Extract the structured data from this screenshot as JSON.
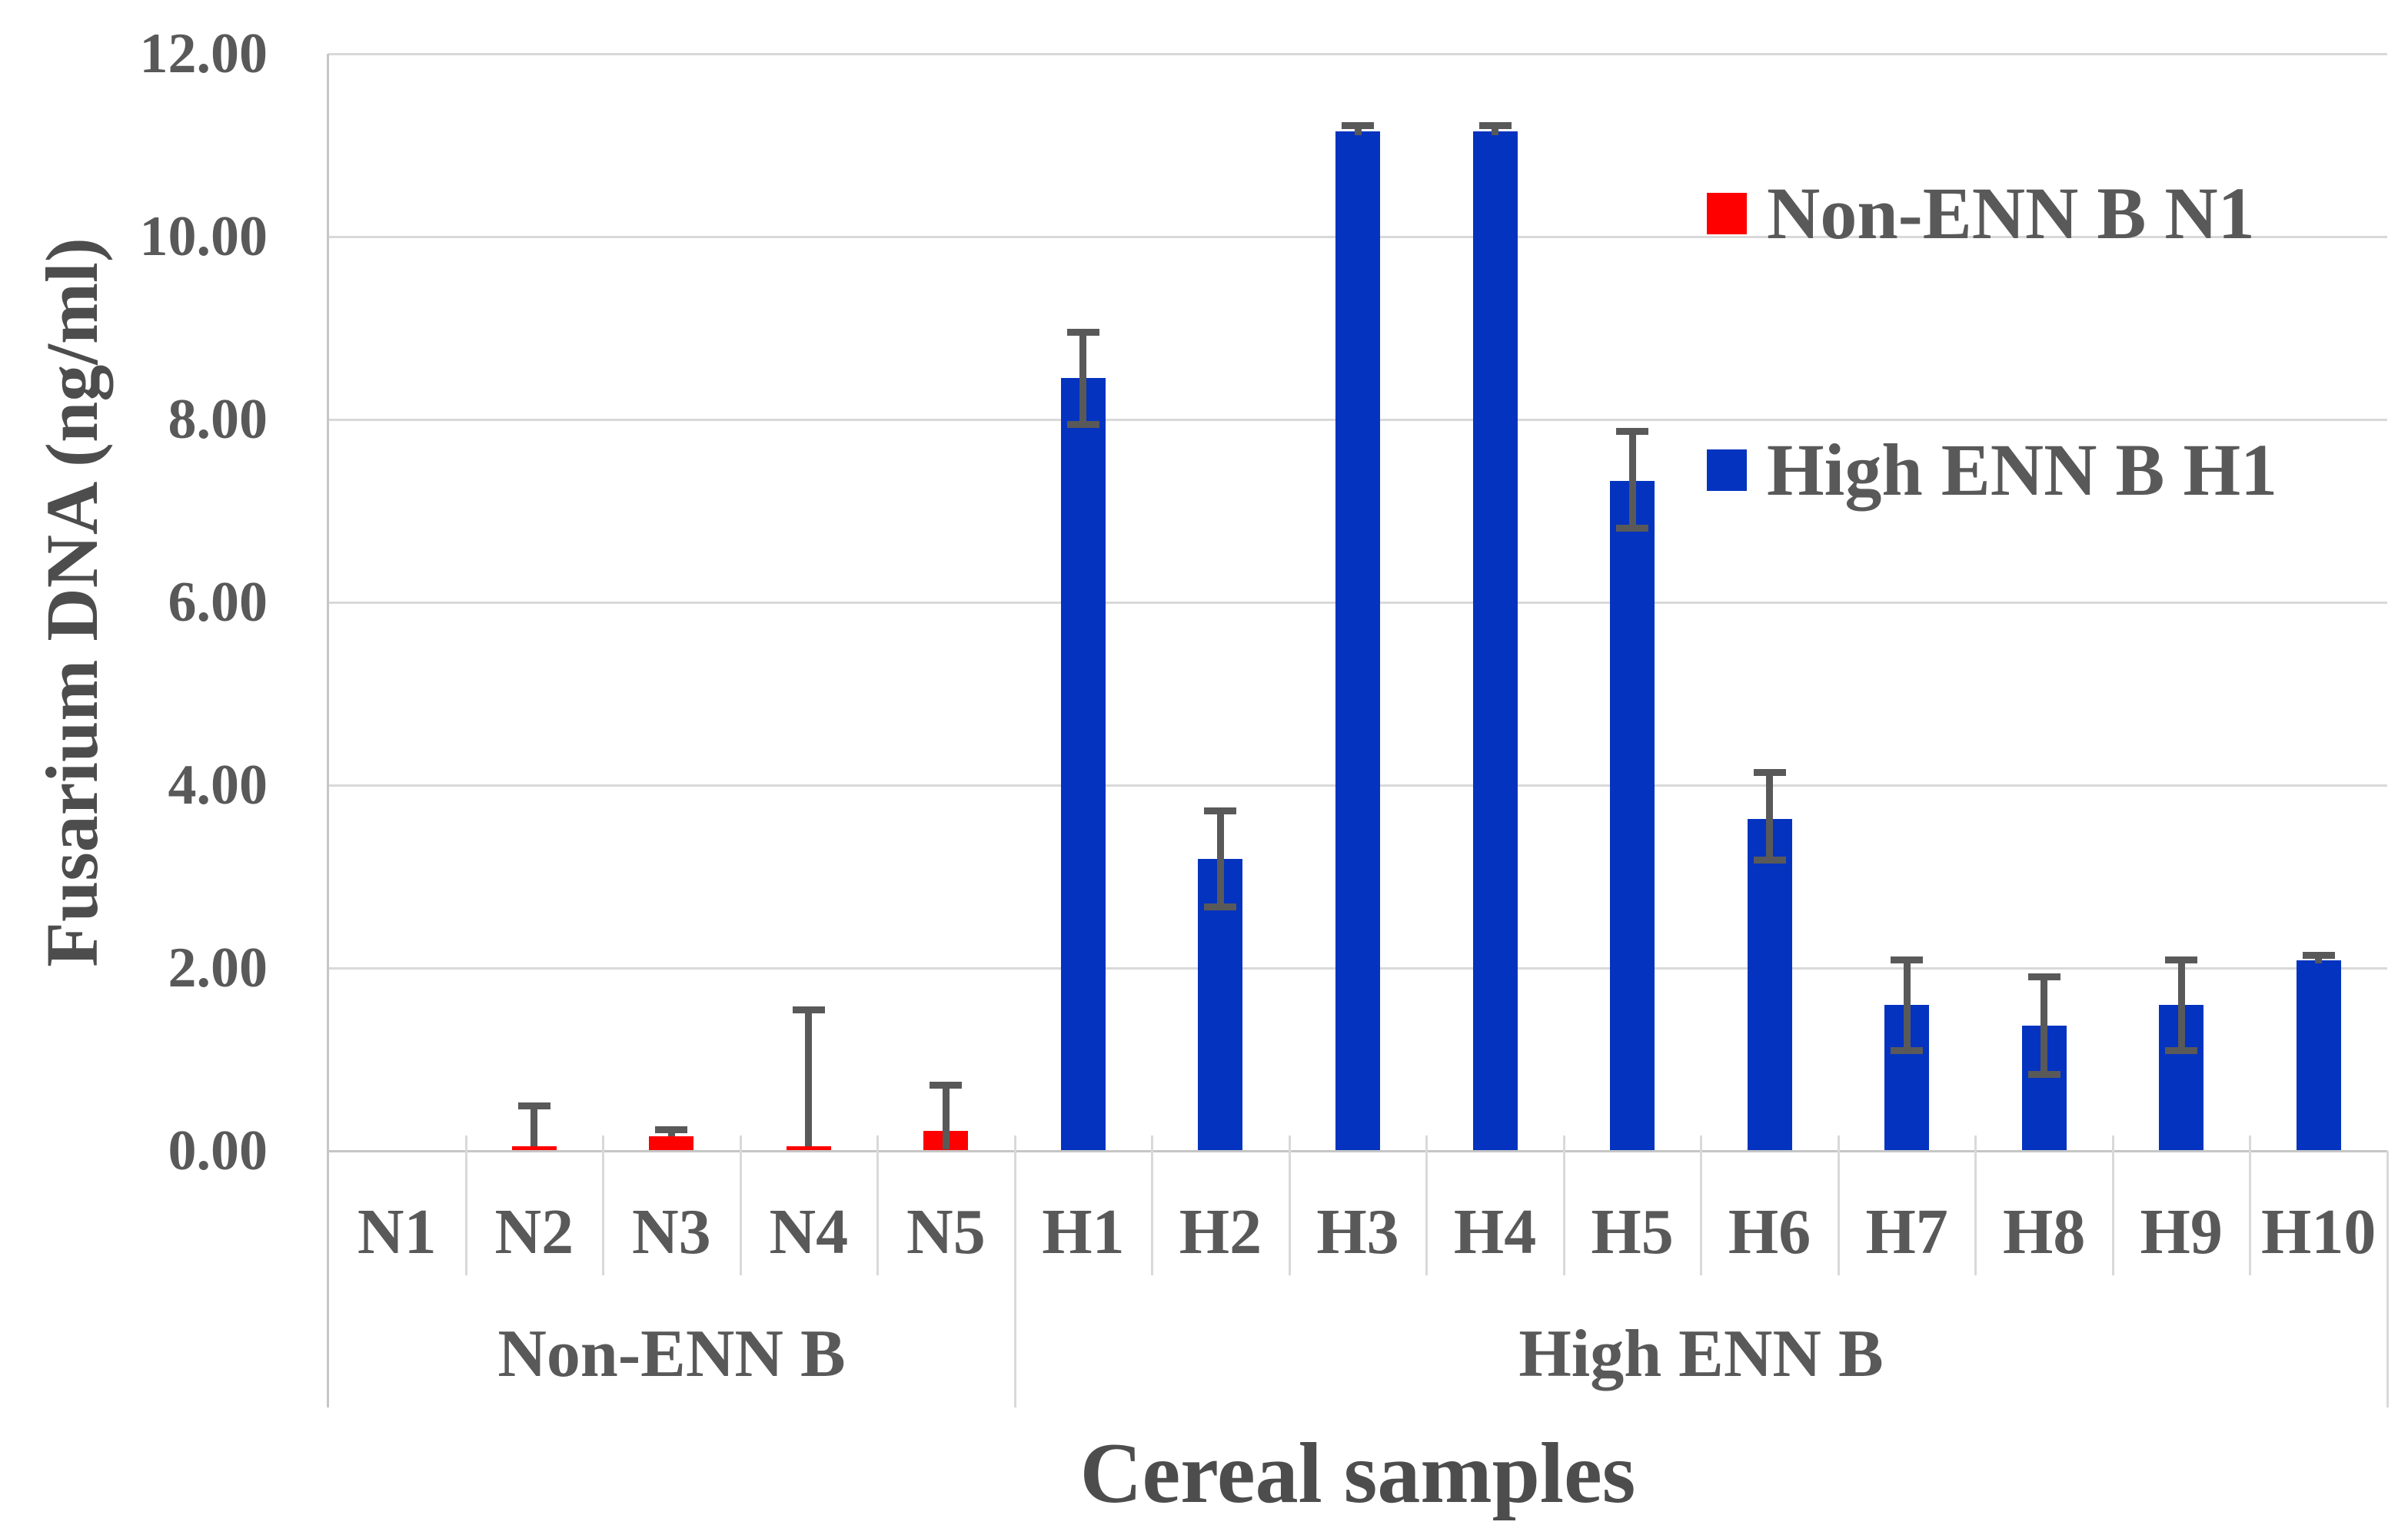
{
  "chart_data": {
    "type": "bar",
    "title": "",
    "xlabel": "Cereal samples",
    "ylabel": "Fusarium DNA (ng/ml)",
    "ylim": [
      0,
      12
    ],
    "ytick_step": 2,
    "yticks": [
      {
        "value": 0,
        "label": "0.00"
      },
      {
        "value": 2,
        "label": "2.00"
      },
      {
        "value": 4,
        "label": "4.00"
      },
      {
        "value": 6,
        "label": "6.00"
      },
      {
        "value": 8,
        "label": "8.00"
      },
      {
        "value": 10,
        "label": "10.00"
      },
      {
        "value": 12,
        "label": "12.00"
      }
    ],
    "grid": true,
    "legend_position": "upper-right",
    "error_bars": true,
    "series": [
      {
        "name": "Non-ENN B N1",
        "color": "#FF0000",
        "group_label": "Non-ENN B",
        "points": [
          {
            "category": "N1",
            "value": 0.0,
            "err_hi": null,
            "err_lo": null,
            "cap_lo": false
          },
          {
            "category": "N2",
            "value": 0.05,
            "err_hi": 0.47,
            "err_lo": 0.05,
            "cap_lo": false
          },
          {
            "category": "N3",
            "value": 0.16,
            "err_hi": 0.21,
            "err_lo": 0.16,
            "cap_lo": false
          },
          {
            "category": "N4",
            "value": 0.05,
            "err_hi": 1.52,
            "err_lo": 0.05,
            "cap_lo": false
          },
          {
            "category": "N5",
            "value": 0.22,
            "err_hi": 0.7,
            "err_lo": 0.02,
            "cap_lo": false
          }
        ]
      },
      {
        "name": "High ENN B H1",
        "color": "#0433BF",
        "group_label": "High ENN B",
        "points": [
          {
            "category": "H1",
            "value": 8.45,
            "err_hi": 8.93,
            "err_lo": 7.97,
            "cap_lo": true
          },
          {
            "category": "H2",
            "value": 3.19,
            "err_hi": 3.7,
            "err_lo": 2.69,
            "cap_lo": true
          },
          {
            "category": "H3",
            "value": 11.15,
            "err_hi": 11.19,
            "err_lo": 11.11,
            "cap_lo": false
          },
          {
            "category": "H4",
            "value": 11.15,
            "err_hi": 11.19,
            "err_lo": 11.11,
            "cap_lo": false
          },
          {
            "category": "H5",
            "value": 7.33,
            "err_hi": 7.85,
            "err_lo": 6.83,
            "cap_lo": true
          },
          {
            "category": "H6",
            "value": 3.63,
            "err_hi": 4.12,
            "err_lo": 3.2,
            "cap_lo": true
          },
          {
            "category": "H7",
            "value": 1.6,
            "err_hi": 2.07,
            "err_lo": 1.12,
            "cap_lo": true
          },
          {
            "category": "H8",
            "value": 1.37,
            "err_hi": 1.88,
            "err_lo": 0.86,
            "cap_lo": true
          },
          {
            "category": "H9",
            "value": 1.6,
            "err_hi": 2.07,
            "err_lo": 1.12,
            "cap_lo": true
          },
          {
            "category": "H10",
            "value": 2.08,
            "err_hi": 2.12,
            "err_lo": 2.05,
            "cap_lo": false
          }
        ]
      }
    ]
  },
  "style": {
    "background": "#FFFFFF",
    "grid_color": "#D9D9D9",
    "axis_color": "#C6C6C6",
    "error_bar_color": "#595959",
    "text_color": "#595959",
    "red": "#FF0000",
    "blue": "#0433BF"
  }
}
